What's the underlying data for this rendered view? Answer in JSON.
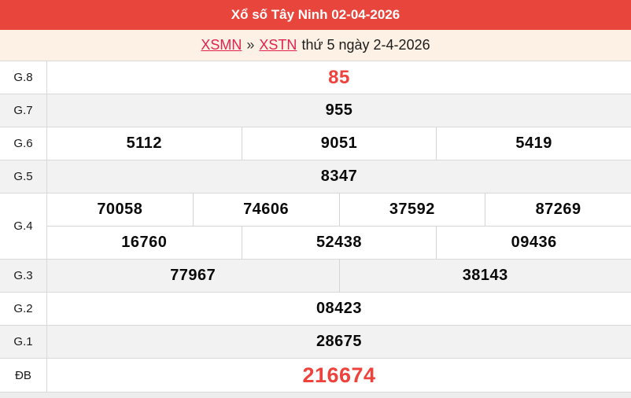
{
  "header": {
    "title": "Xổ số Tây Ninh 02-04-2026"
  },
  "breadcrumb": {
    "region_link": "XSMN",
    "separator": "»",
    "province_link": "XSTN",
    "date_text": "thứ 5 ngày 2-4-2026"
  },
  "results_table": {
    "rows": [
      {
        "label": "G.8",
        "highlight": true,
        "groups": [
          [
            "85"
          ]
        ]
      },
      {
        "label": "G.7",
        "highlight": false,
        "groups": [
          [
            "955"
          ]
        ]
      },
      {
        "label": "G.6",
        "highlight": false,
        "groups": [
          [
            "5112",
            "9051",
            "5419"
          ]
        ]
      },
      {
        "label": "G.5",
        "highlight": false,
        "groups": [
          [
            "8347"
          ]
        ]
      },
      {
        "label": "G.4",
        "highlight": false,
        "groups": [
          [
            "70058",
            "74606",
            "37592",
            "87269"
          ],
          [
            "16760",
            "52438",
            "09436"
          ]
        ]
      },
      {
        "label": "G.3",
        "highlight": false,
        "groups": [
          [
            "77967",
            "38143"
          ]
        ]
      },
      {
        "label": "G.2",
        "highlight": false,
        "groups": [
          [
            "08423"
          ]
        ]
      },
      {
        "label": "G.1",
        "highlight": false,
        "groups": [
          [
            "28675"
          ]
        ]
      },
      {
        "label": "ĐB",
        "highlight": true,
        "groups": [
          [
            "216674"
          ]
        ]
      }
    ]
  },
  "colors": {
    "header_background": "#e8453c",
    "header_text": "#ffffff",
    "breadcrumb_background": "#fcf1e4",
    "link_red": "#e3234e",
    "highlight_number_red": "#ee423c",
    "alt_row_background": "#f2f2f2",
    "border": "#d9d9d9"
  }
}
